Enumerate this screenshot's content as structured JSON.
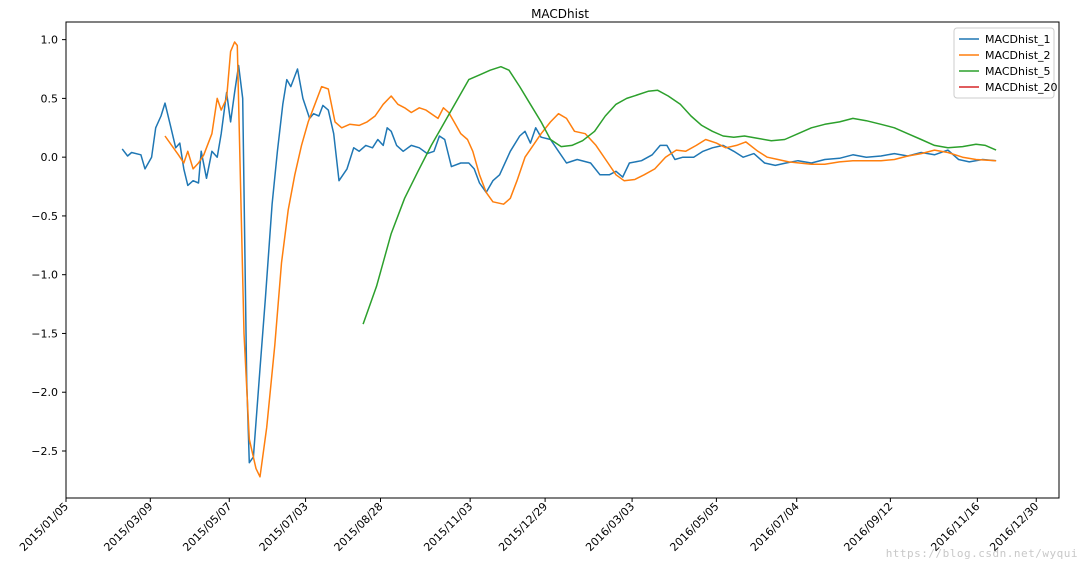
{
  "watermark": "https://blog.csdn.net/wyqui",
  "chart_data": {
    "type": "line",
    "title": "MACDhist",
    "xlabel": "",
    "ylabel": "",
    "xlim": [
      "2015-01-05",
      "2017-01-16"
    ],
    "ylim": [
      -2.9,
      1.15
    ],
    "grid": false,
    "legend_position": "top-right",
    "x_ticks": [
      "2015/01/05",
      "2015/03/09",
      "2015/05/07",
      "2015/07/03",
      "2015/08/28",
      "2015/11/03",
      "2015/12/29",
      "2016/03/03",
      "2016/05/05",
      "2016/07/04",
      "2016/09/12",
      "2016/11/16",
      "2016/12/30"
    ],
    "y_ticks": [
      "1.0",
      "0.5",
      "0.0",
      "−0.5",
      "−1.0",
      "−1.5",
      "−2.0",
      "−2.5"
    ],
    "y_tick_values": [
      1.0,
      0.5,
      0.0,
      -0.5,
      -1.0,
      -1.5,
      -2.0,
      -2.5
    ],
    "series": [
      {
        "name": "MACDhist_1",
        "color": "#1f77b4",
        "points": [
          [
            "2015-02-16",
            0.07
          ],
          [
            "2015-02-20",
            0.01
          ],
          [
            "2015-02-23",
            0.04
          ],
          [
            "2015-03-02",
            0.02
          ],
          [
            "2015-03-05",
            -0.1
          ],
          [
            "2015-03-10",
            0.0
          ],
          [
            "2015-03-13",
            0.25
          ],
          [
            "2015-03-17",
            0.35
          ],
          [
            "2015-03-20",
            0.46
          ],
          [
            "2015-03-24",
            0.27
          ],
          [
            "2015-03-28",
            0.08
          ],
          [
            "2015-03-31",
            0.12
          ],
          [
            "2015-04-03",
            -0.1
          ],
          [
            "2015-04-06",
            -0.24
          ],
          [
            "2015-04-10",
            -0.2
          ],
          [
            "2015-04-14",
            -0.22
          ],
          [
            "2015-04-16",
            0.05
          ],
          [
            "2015-04-20",
            -0.18
          ],
          [
            "2015-04-24",
            0.05
          ],
          [
            "2015-04-28",
            0.0
          ],
          [
            "2015-05-01",
            0.2
          ],
          [
            "2015-05-05",
            0.55
          ],
          [
            "2015-05-08",
            0.3
          ],
          [
            "2015-05-11",
            0.55
          ],
          [
            "2015-05-14",
            0.78
          ],
          [
            "2015-05-17",
            0.5
          ],
          [
            "2015-05-20",
            -1.9
          ],
          [
            "2015-05-22",
            -2.6
          ],
          [
            "2015-05-25",
            -2.55
          ],
          [
            "2015-05-30",
            -1.8
          ],
          [
            "2015-06-03",
            -1.2
          ],
          [
            "2015-06-08",
            -0.4
          ],
          [
            "2015-06-12",
            0.05
          ],
          [
            "2015-06-16",
            0.45
          ],
          [
            "2015-06-19",
            0.66
          ],
          [
            "2015-06-22",
            0.6
          ],
          [
            "2015-06-27",
            0.75
          ],
          [
            "2015-07-01",
            0.5
          ],
          [
            "2015-07-06",
            0.33
          ],
          [
            "2015-07-09",
            0.37
          ],
          [
            "2015-07-13",
            0.35
          ],
          [
            "2015-07-16",
            0.44
          ],
          [
            "2015-07-20",
            0.4
          ],
          [
            "2015-07-24",
            0.2
          ],
          [
            "2015-07-28",
            -0.2
          ],
          [
            "2015-07-31",
            -0.15
          ],
          [
            "2015-08-03",
            -0.1
          ],
          [
            "2015-08-08",
            0.08
          ],
          [
            "2015-08-12",
            0.05
          ],
          [
            "2015-08-17",
            0.1
          ],
          [
            "2015-08-22",
            0.08
          ],
          [
            "2015-08-26",
            0.15
          ],
          [
            "2015-08-30",
            0.1
          ],
          [
            "2015-09-02",
            0.25
          ],
          [
            "2015-09-05",
            0.22
          ],
          [
            "2015-09-09",
            0.1
          ],
          [
            "2015-09-14",
            0.05
          ],
          [
            "2015-09-20",
            0.1
          ],
          [
            "2015-09-26",
            0.08
          ],
          [
            "2015-10-02",
            0.03
          ],
          [
            "2015-10-07",
            0.05
          ],
          [
            "2015-10-11",
            0.18
          ],
          [
            "2015-10-15",
            0.15
          ],
          [
            "2015-10-20",
            -0.08
          ],
          [
            "2015-10-27",
            -0.05
          ],
          [
            "2015-11-02",
            -0.05
          ],
          [
            "2015-11-06",
            -0.1
          ],
          [
            "2015-11-10",
            -0.22
          ],
          [
            "2015-11-15",
            -0.3
          ],
          [
            "2015-11-20",
            -0.2
          ],
          [
            "2015-11-25",
            -0.15
          ],
          [
            "2015-12-03",
            0.05
          ],
          [
            "2015-12-10",
            0.18
          ],
          [
            "2015-12-14",
            0.22
          ],
          [
            "2015-12-18",
            0.12
          ],
          [
            "2015-12-22",
            0.25
          ],
          [
            "2015-12-26",
            0.17
          ],
          [
            "2016-01-02",
            0.15
          ],
          [
            "2016-01-08",
            0.05
          ],
          [
            "2016-01-14",
            -0.05
          ],
          [
            "2016-01-22",
            -0.02
          ],
          [
            "2016-02-01",
            -0.05
          ],
          [
            "2016-02-08",
            -0.15
          ],
          [
            "2016-02-15",
            -0.15
          ],
          [
            "2016-02-20",
            -0.12
          ],
          [
            "2016-02-25",
            -0.17
          ],
          [
            "2016-03-01",
            -0.05
          ],
          [
            "2016-03-10",
            -0.03
          ],
          [
            "2016-03-18",
            0.02
          ],
          [
            "2016-03-24",
            0.1
          ],
          [
            "2016-03-29",
            0.1
          ],
          [
            "2016-04-04",
            -0.02
          ],
          [
            "2016-04-10",
            0.0
          ],
          [
            "2016-04-18",
            0.0
          ],
          [
            "2016-04-25",
            0.05
          ],
          [
            "2016-05-02",
            0.08
          ],
          [
            "2016-05-10",
            0.1
          ],
          [
            "2016-05-18",
            0.05
          ],
          [
            "2016-05-25",
            0.0
          ],
          [
            "2016-06-02",
            0.03
          ],
          [
            "2016-06-10",
            -0.05
          ],
          [
            "2016-06-18",
            -0.07
          ],
          [
            "2016-06-26",
            -0.05
          ],
          [
            "2016-07-05",
            -0.03
          ],
          [
            "2016-07-15",
            -0.05
          ],
          [
            "2016-07-25",
            -0.02
          ],
          [
            "2016-08-05",
            -0.01
          ],
          [
            "2016-08-15",
            0.02
          ],
          [
            "2016-08-25",
            0.0
          ],
          [
            "2016-09-05",
            0.01
          ],
          [
            "2016-09-15",
            0.03
          ],
          [
            "2016-09-25",
            0.01
          ],
          [
            "2016-10-05",
            0.04
          ],
          [
            "2016-10-15",
            0.02
          ],
          [
            "2016-10-25",
            0.06
          ],
          [
            "2016-11-02",
            -0.02
          ],
          [
            "2016-11-10",
            -0.04
          ],
          [
            "2016-11-20",
            -0.02
          ],
          [
            "2016-11-30",
            -0.03
          ]
        ]
      },
      {
        "name": "MACDhist_2",
        "color": "#ff7f0e",
        "points": [
          [
            "2015-03-20",
            0.18
          ],
          [
            "2015-03-25",
            0.1
          ],
          [
            "2015-03-30",
            0.02
          ],
          [
            "2015-04-03",
            -0.05
          ],
          [
            "2015-04-06",
            0.05
          ],
          [
            "2015-04-10",
            -0.1
          ],
          [
            "2015-04-14",
            -0.05
          ],
          [
            "2015-04-18",
            0.02
          ],
          [
            "2015-04-24",
            0.2
          ],
          [
            "2015-04-28",
            0.5
          ],
          [
            "2015-05-01",
            0.4
          ],
          [
            "2015-05-05",
            0.5
          ],
          [
            "2015-05-08",
            0.9
          ],
          [
            "2015-05-11",
            0.98
          ],
          [
            "2015-05-13",
            0.95
          ],
          [
            "2015-05-18",
            -1.5
          ],
          [
            "2015-05-22",
            -2.4
          ],
          [
            "2015-05-27",
            -2.65
          ],
          [
            "2015-05-30",
            -2.72
          ],
          [
            "2015-06-04",
            -2.3
          ],
          [
            "2015-06-10",
            -1.6
          ],
          [
            "2015-06-15",
            -0.9
          ],
          [
            "2015-06-20",
            -0.45
          ],
          [
            "2015-06-25",
            -0.15
          ],
          [
            "2015-06-30",
            0.1
          ],
          [
            "2015-07-05",
            0.3
          ],
          [
            "2015-07-10",
            0.45
          ],
          [
            "2015-07-15",
            0.6
          ],
          [
            "2015-07-20",
            0.58
          ],
          [
            "2015-07-25",
            0.3
          ],
          [
            "2015-07-30",
            0.25
          ],
          [
            "2015-08-05",
            0.28
          ],
          [
            "2015-08-12",
            0.27
          ],
          [
            "2015-08-18",
            0.3
          ],
          [
            "2015-08-24",
            0.35
          ],
          [
            "2015-08-30",
            0.45
          ],
          [
            "2015-09-05",
            0.52
          ],
          [
            "2015-09-10",
            0.45
          ],
          [
            "2015-09-15",
            0.42
          ],
          [
            "2015-09-20",
            0.38
          ],
          [
            "2015-09-26",
            0.42
          ],
          [
            "2015-10-01",
            0.4
          ],
          [
            "2015-10-06",
            0.36
          ],
          [
            "2015-10-10",
            0.33
          ],
          [
            "2015-10-14",
            0.42
          ],
          [
            "2015-10-18",
            0.38
          ],
          [
            "2015-10-22",
            0.3
          ],
          [
            "2015-10-27",
            0.2
          ],
          [
            "2015-11-01",
            0.15
          ],
          [
            "2015-11-05",
            0.05
          ],
          [
            "2015-11-10",
            -0.15
          ],
          [
            "2015-11-15",
            -0.3
          ],
          [
            "2015-11-20",
            -0.38
          ],
          [
            "2015-11-28",
            -0.4
          ],
          [
            "2015-12-03",
            -0.35
          ],
          [
            "2015-12-08",
            -0.2
          ],
          [
            "2015-12-14",
            0.0
          ],
          [
            "2015-12-20",
            0.1
          ],
          [
            "2015-12-26",
            0.2
          ],
          [
            "2016-01-02",
            0.3
          ],
          [
            "2016-01-08",
            0.37
          ],
          [
            "2016-01-14",
            0.33
          ],
          [
            "2016-01-20",
            0.22
          ],
          [
            "2016-01-28",
            0.2
          ],
          [
            "2016-02-05",
            0.1
          ],
          [
            "2016-02-14",
            -0.05
          ],
          [
            "2016-02-20",
            -0.15
          ],
          [
            "2016-02-26",
            -0.2
          ],
          [
            "2016-03-05",
            -0.19
          ],
          [
            "2016-03-12",
            -0.15
          ],
          [
            "2016-03-20",
            -0.1
          ],
          [
            "2016-03-28",
            0.0
          ],
          [
            "2016-04-05",
            0.06
          ],
          [
            "2016-04-12",
            0.05
          ],
          [
            "2016-04-20",
            0.1
          ],
          [
            "2016-04-27",
            0.15
          ],
          [
            "2016-05-05",
            0.12
          ],
          [
            "2016-05-12",
            0.08
          ],
          [
            "2016-05-20",
            0.1
          ],
          [
            "2016-05-27",
            0.13
          ],
          [
            "2016-06-05",
            0.05
          ],
          [
            "2016-06-12",
            0.0
          ],
          [
            "2016-06-20",
            -0.02
          ],
          [
            "2016-06-28",
            -0.04
          ],
          [
            "2016-07-06",
            -0.05
          ],
          [
            "2016-07-15",
            -0.06
          ],
          [
            "2016-07-25",
            -0.06
          ],
          [
            "2016-08-05",
            -0.04
          ],
          [
            "2016-08-15",
            -0.03
          ],
          [
            "2016-08-25",
            -0.03
          ],
          [
            "2016-09-05",
            -0.03
          ],
          [
            "2016-09-15",
            -0.02
          ],
          [
            "2016-09-25",
            0.01
          ],
          [
            "2016-10-05",
            0.03
          ],
          [
            "2016-10-15",
            0.06
          ],
          [
            "2016-10-25",
            0.04
          ],
          [
            "2016-11-05",
            0.0
          ],
          [
            "2016-11-15",
            -0.02
          ],
          [
            "2016-11-30",
            -0.03
          ]
        ]
      },
      {
        "name": "MACDhist_5",
        "color": "#2ca02c",
        "points": [
          [
            "2015-08-15",
            -1.42
          ],
          [
            "2015-08-25",
            -1.1
          ],
          [
            "2015-09-05",
            -0.65
          ],
          [
            "2015-09-15",
            -0.35
          ],
          [
            "2015-09-25",
            -0.12
          ],
          [
            "2015-10-05",
            0.1
          ],
          [
            "2015-10-15",
            0.3
          ],
          [
            "2015-10-25",
            0.5
          ],
          [
            "2015-11-02",
            0.66
          ],
          [
            "2015-11-10",
            0.7
          ],
          [
            "2015-11-18",
            0.74
          ],
          [
            "2015-11-26",
            0.77
          ],
          [
            "2015-12-02",
            0.74
          ],
          [
            "2015-12-10",
            0.6
          ],
          [
            "2015-12-18",
            0.45
          ],
          [
            "2015-12-26",
            0.3
          ],
          [
            "2016-01-02",
            0.15
          ],
          [
            "2016-01-10",
            0.09
          ],
          [
            "2016-01-18",
            0.1
          ],
          [
            "2016-01-26",
            0.14
          ],
          [
            "2016-02-04",
            0.22
          ],
          [
            "2016-02-12",
            0.35
          ],
          [
            "2016-02-20",
            0.45
          ],
          [
            "2016-02-28",
            0.5
          ],
          [
            "2016-03-07",
            0.53
          ],
          [
            "2016-03-15",
            0.56
          ],
          [
            "2016-03-22",
            0.57
          ],
          [
            "2016-03-30",
            0.52
          ],
          [
            "2016-04-08",
            0.45
          ],
          [
            "2016-04-16",
            0.35
          ],
          [
            "2016-04-24",
            0.27
          ],
          [
            "2016-05-02",
            0.22
          ],
          [
            "2016-05-10",
            0.18
          ],
          [
            "2016-05-18",
            0.17
          ],
          [
            "2016-05-26",
            0.18
          ],
          [
            "2016-06-05",
            0.16
          ],
          [
            "2016-06-15",
            0.14
          ],
          [
            "2016-06-25",
            0.15
          ],
          [
            "2016-07-05",
            0.2
          ],
          [
            "2016-07-15",
            0.25
          ],
          [
            "2016-07-25",
            0.28
          ],
          [
            "2016-08-05",
            0.3
          ],
          [
            "2016-08-15",
            0.33
          ],
          [
            "2016-08-25",
            0.31
          ],
          [
            "2016-09-05",
            0.28
          ],
          [
            "2016-09-15",
            0.25
          ],
          [
            "2016-09-25",
            0.2
          ],
          [
            "2016-10-05",
            0.15
          ],
          [
            "2016-10-15",
            0.1
          ],
          [
            "2016-10-25",
            0.08
          ],
          [
            "2016-11-05",
            0.09
          ],
          [
            "2016-11-15",
            0.11
          ],
          [
            "2016-11-22",
            0.1
          ],
          [
            "2016-11-30",
            0.06
          ]
        ]
      },
      {
        "name": "MACDhist_20",
        "color": "#d62728",
        "points": []
      }
    ]
  }
}
